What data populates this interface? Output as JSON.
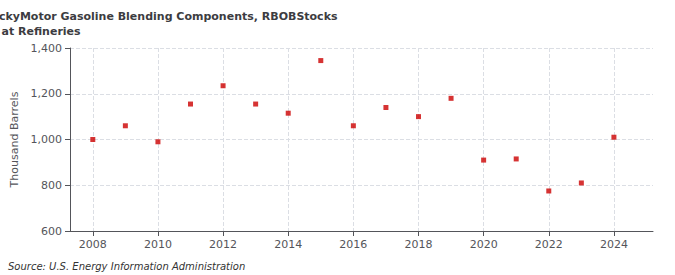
{
  "chart_data": {
    "type": "scatter",
    "title": "Annual Ref District Indiana-Illinois-KentuckyMotor Gasoline Blending Components, RBOBStocks\nat Refineries",
    "ylabel": "Thousand Barrels",
    "annotation": "Source: U.S. Energy Information Administration",
    "x": [
      2008,
      2009,
      2010,
      2011,
      2012,
      2013,
      2014,
      2015,
      2016,
      2017,
      2018,
      2019,
      2020,
      2021,
      2022,
      2023,
      2024
    ],
    "values": [
      1000,
      1060,
      990,
      1155,
      1235,
      1155,
      1115,
      1345,
      1060,
      1140,
      1100,
      1180,
      910,
      915,
      775,
      810,
      1010
    ],
    "color": "#cc0000",
    "marker": "square",
    "xlim": [
      2007.3,
      2025.2
    ],
    "xticks": [
      2008,
      2010,
      2012,
      2014,
      2016,
      2018,
      2020,
      2022,
      2024
    ],
    "ylim": [
      600,
      1400
    ],
    "yticks": [
      600,
      800,
      {
        "value": 1000,
        "label": "1,000"
      },
      {
        "value": 1200,
        "label": "1,200"
      },
      {
        "value": 1400,
        "label": "1,400"
      }
    ],
    "grid": true
  }
}
